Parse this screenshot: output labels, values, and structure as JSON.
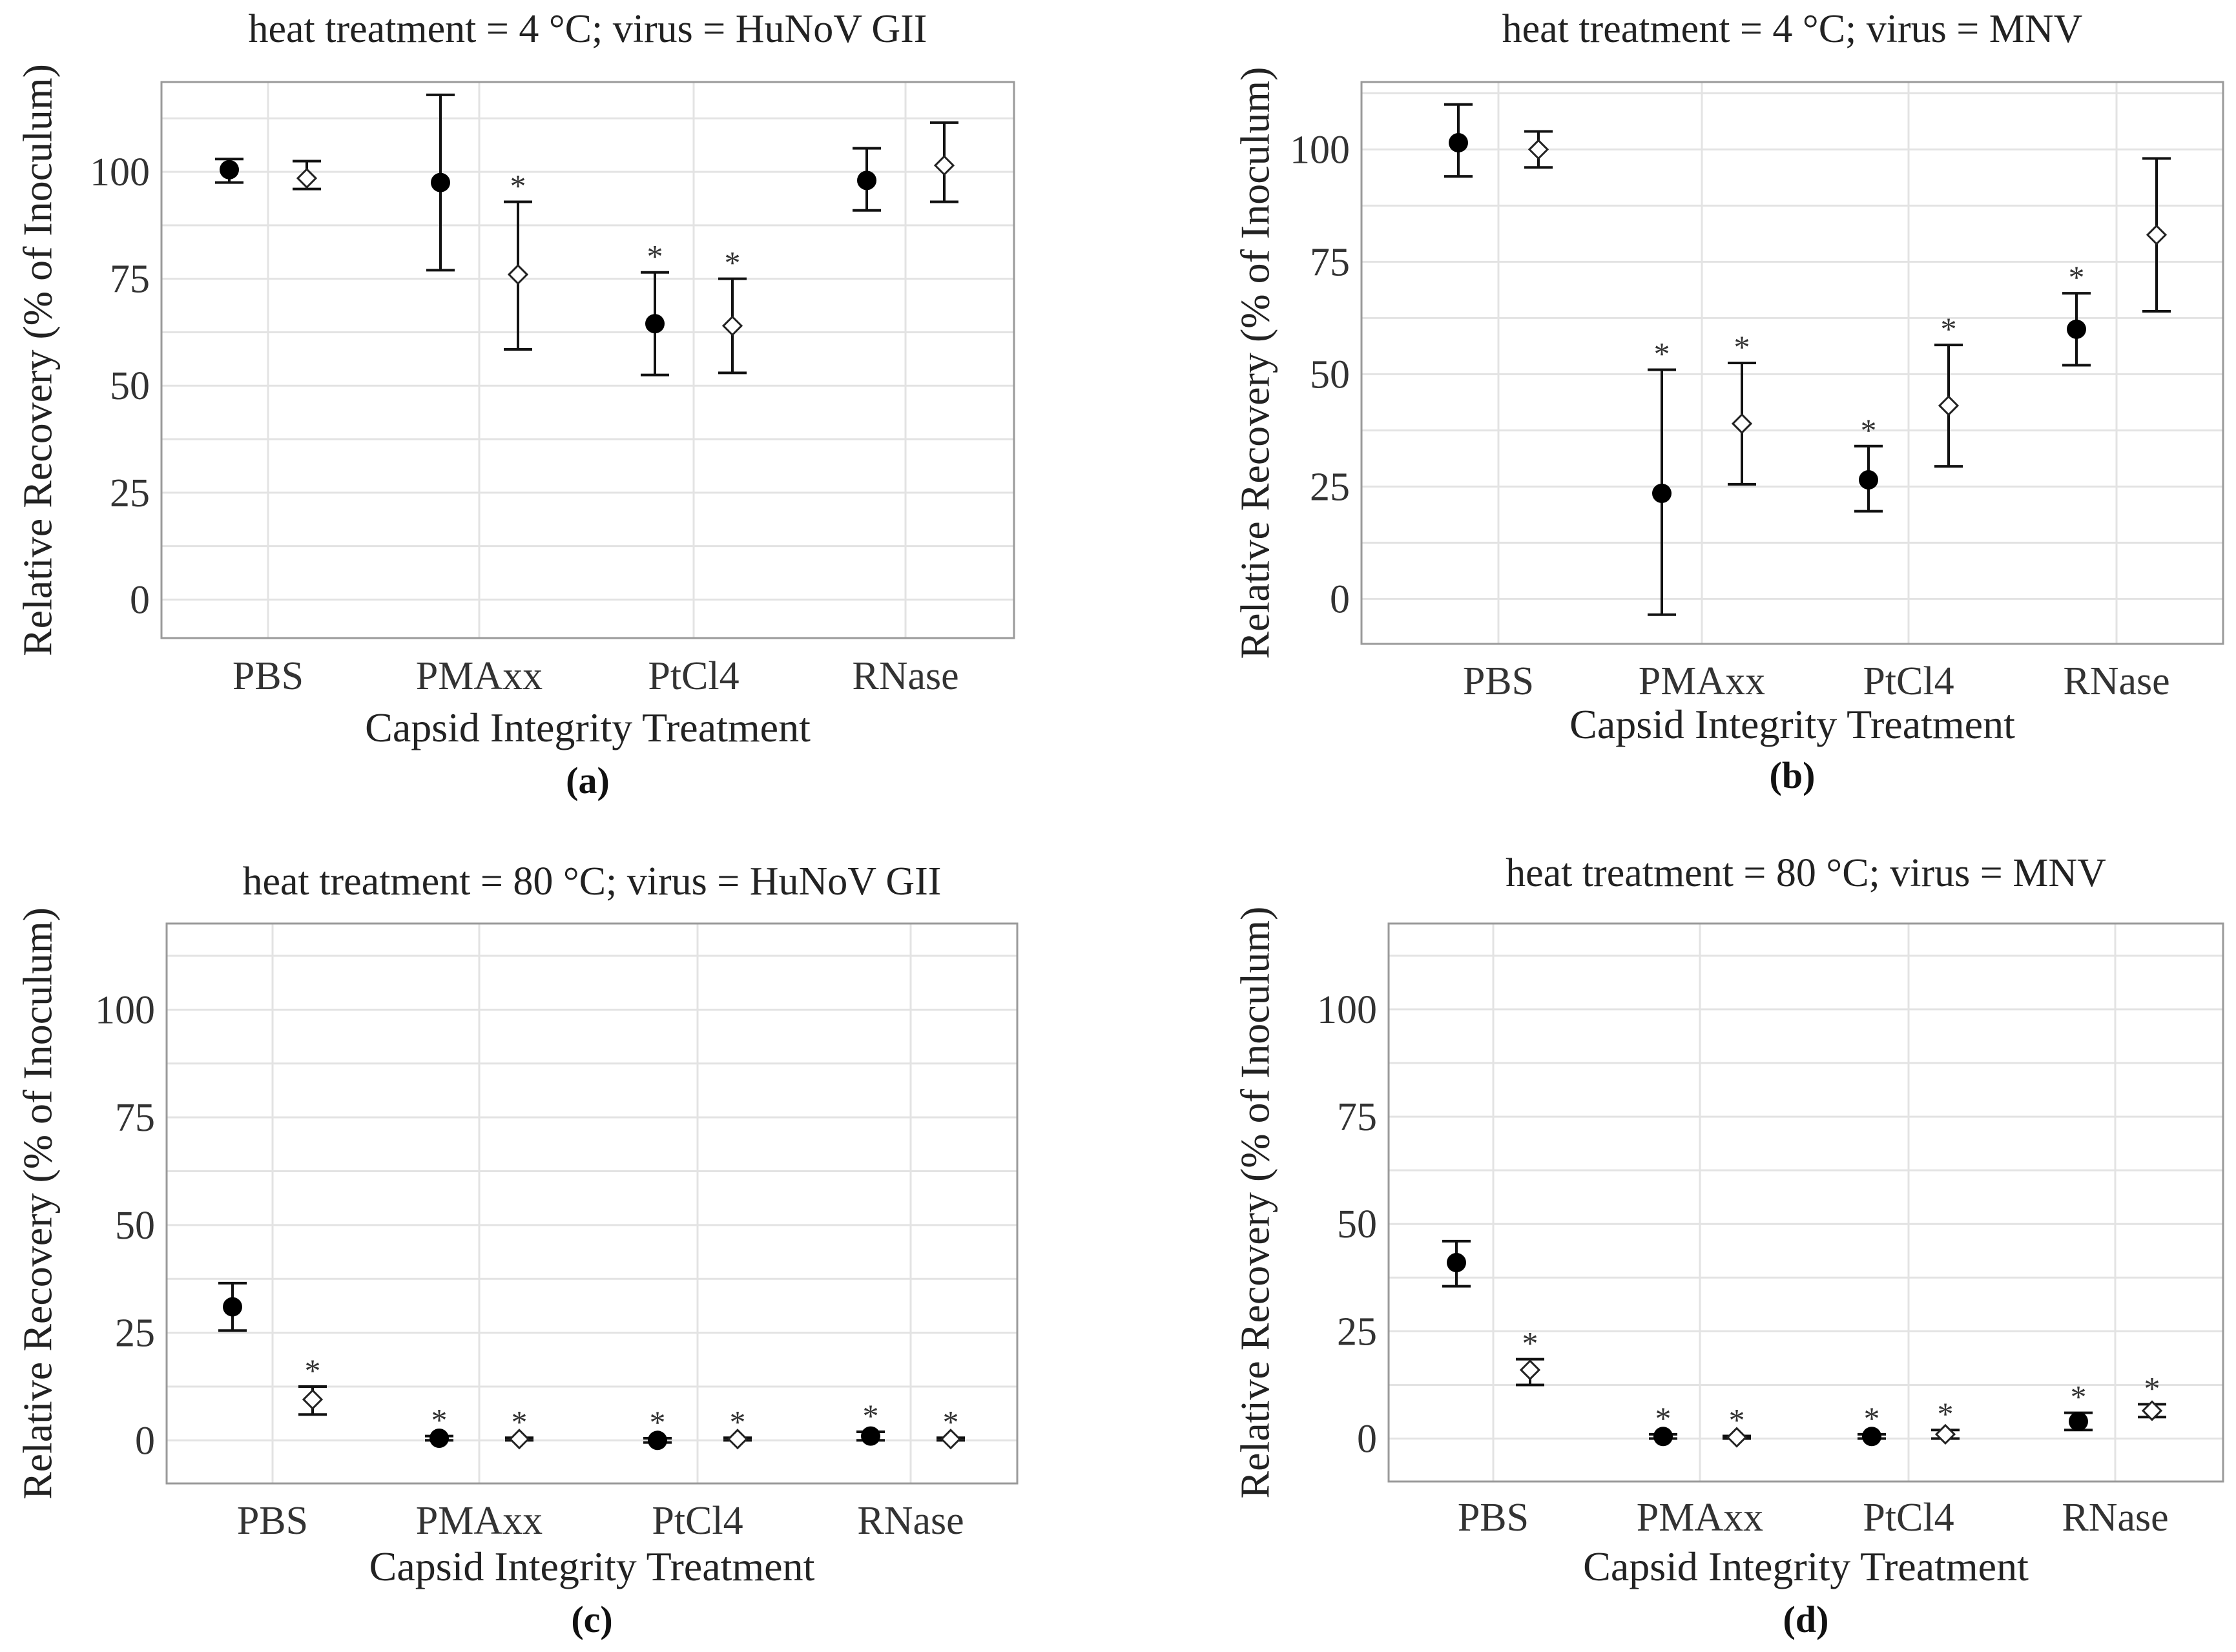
{
  "chart_data": [
    {
      "type": "scatter",
      "panel": "(a)",
      "title": "heat treatment = 4 °C; virus = HuNoV GII",
      "xlabel": "Capsid Integrity Treatment",
      "ylabel": "Relative Recovery (% of Inoculum)",
      "categories": [
        "PBS",
        "PMAxx",
        "PtCl4",
        "RNase"
      ],
      "yticks": [
        0,
        25,
        50,
        75,
        100
      ],
      "ylim": [
        -9,
        121
      ],
      "grid": true,
      "series": [
        {
          "name": "filled",
          "marker": "circle",
          "values": [
            100.5,
            97.5,
            64.5,
            98
          ],
          "lower": [
            97.5,
            77,
            52.5,
            91
          ],
          "upper": [
            103,
            118,
            76.5,
            105.5
          ],
          "significant": [
            false,
            false,
            true,
            false
          ]
        },
        {
          "name": "open",
          "marker": "diamond",
          "values": [
            98.5,
            76,
            64,
            101.5
          ],
          "lower": [
            96,
            58.5,
            53,
            93
          ],
          "upper": [
            102.5,
            93,
            75,
            111.5
          ],
          "significant": [
            false,
            true,
            true,
            false
          ]
        }
      ]
    },
    {
      "type": "scatter",
      "panel": "(b)",
      "title": "heat treatment = 4 °C; virus = MNV",
      "xlabel": "Capsid Integrity Treatment",
      "ylabel": "Relative Recovery (% of Inoculum)",
      "categories": [
        "PBS",
        "PMAxx",
        "PtCl4",
        "RNase"
      ],
      "yticks": [
        0,
        25,
        50,
        75,
        100
      ],
      "ylim": [
        -10,
        115
      ],
      "grid": true,
      "series": [
        {
          "name": "filled",
          "marker": "circle",
          "values": [
            101.5,
            23.5,
            26.5,
            60
          ],
          "lower": [
            94,
            -3.5,
            19.5,
            52
          ],
          "upper": [
            110,
            51,
            34,
            68
          ],
          "significant": [
            false,
            true,
            true,
            true
          ]
        },
        {
          "name": "open",
          "marker": "diamond",
          "values": [
            100,
            39,
            43,
            81
          ],
          "lower": [
            96,
            25.5,
            29.5,
            64
          ],
          "upper": [
            104,
            52.5,
            56.5,
            98
          ],
          "significant": [
            false,
            true,
            true,
            false
          ]
        }
      ]
    },
    {
      "type": "scatter",
      "panel": "(c)",
      "title": "heat treatment = 80 °C; virus = HuNoV GII",
      "xlabel": "Capsid Integrity Treatment",
      "ylabel": "Relative Recovery (% of Inoculum)",
      "categories": [
        "PBS",
        "PMAxx",
        "PtCl4",
        "RNase"
      ],
      "yticks": [
        0,
        25,
        50,
        75,
        100
      ],
      "ylim": [
        -10,
        120
      ],
      "grid": true,
      "series": [
        {
          "name": "filled",
          "marker": "circle",
          "values": [
            31,
            0.5,
            0,
            1
          ],
          "lower": [
            25.5,
            0,
            -0.5,
            0
          ],
          "upper": [
            36.5,
            1,
            0.5,
            2
          ],
          "significant": [
            false,
            true,
            true,
            true
          ]
        },
        {
          "name": "open",
          "marker": "diamond",
          "values": [
            9.5,
            0.3,
            0.3,
            0.3
          ],
          "lower": [
            6,
            0,
            0,
            0
          ],
          "upper": [
            12.5,
            0.6,
            0.6,
            0.6
          ],
          "significant": [
            true,
            true,
            true,
            true
          ]
        }
      ]
    },
    {
      "type": "scatter",
      "panel": "(d)",
      "title": "heat treatment = 80 °C; virus = MNV",
      "xlabel": "Capsid Integrity Treatment",
      "ylabel": "Relative Recovery (% of Inoculum)",
      "categories": [
        "PBS",
        "PMAxx",
        "PtCl4",
        "RNase"
      ],
      "yticks": [
        0,
        25,
        50,
        75,
        100
      ],
      "ylim": [
        -10,
        120
      ],
      "grid": true,
      "series": [
        {
          "name": "filled",
          "marker": "circle",
          "values": [
            41,
            0.5,
            0.5,
            4
          ],
          "lower": [
            35.5,
            0,
            0,
            2
          ],
          "upper": [
            46,
            1,
            1,
            6
          ],
          "significant": [
            false,
            true,
            true,
            true
          ]
        },
        {
          "name": "open",
          "marker": "diamond",
          "values": [
            16,
            0.3,
            1,
            6.5
          ],
          "lower": [
            12.5,
            0,
            0,
            5
          ],
          "upper": [
            18.5,
            0.6,
            2,
            8
          ],
          "significant": [
            true,
            true,
            true,
            true
          ]
        }
      ]
    }
  ]
}
